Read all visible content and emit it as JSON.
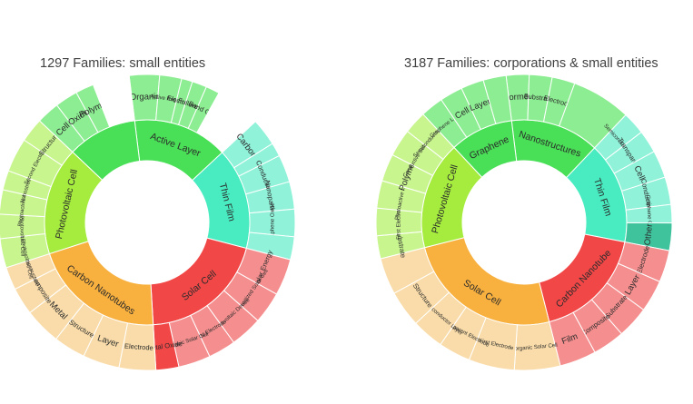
{
  "chart_data": [
    {
      "type": "sunburst",
      "title": "1297 Families: small entities",
      "segments": [
        {
          "name": "Active Layer",
          "value": 15,
          "color": "#49df56",
          "children": [
            {
              "name": "Organic",
              "value": 3.3,
              "color": "#8ded92"
            },
            {
              "name": "Active Region",
              "value": 2.4,
              "color": "#8ded92"
            },
            {
              "name": "Electrode",
              "value": 1.2,
              "color": "#8ded92"
            },
            {
              "name": "Fullerene",
              "value": 1.6,
              "color": "#8ded92"
            },
            {
              "name": "Band Gap",
              "value": 1.5,
              "color": "#8ded92"
            },
            {
              "name": "",
              "value": 5,
              "color": "#fff"
            }
          ]
        },
        {
          "name": "Thin Film",
          "value": 16,
          "color": "#48ecc0",
          "children": [
            {
              "name": "Carbon",
              "value": 3,
              "color": "#8ff2d9"
            },
            {
              "name": "",
              "value": 1.5,
              "color": "#8ff2d9"
            },
            {
              "name": "Conductive",
              "value": 3,
              "color": "#8ff2d9"
            },
            {
              "name": "Nanoparticle",
              "value": 3,
              "color": "#8ff2d9"
            },
            {
              "name": "Graphene Oxide",
              "value": 3,
              "color": "#8ff2d9"
            },
            {
              "name": "",
              "value": 2.5,
              "color": "#8ff2d9"
            }
          ]
        },
        {
          "name": "Solar Cell",
          "value": 20,
          "color": "#f24747",
          "children": [
            {
              "name": "Solar Energy",
              "value": 4,
              "color": "#f58f8f"
            },
            {
              "name": "Dye-sensitized Solar Cell",
              "value": 3.5,
              "color": "#f58f8f"
            },
            {
              "name": "Photovoltaic Device",
              "value": 3.5,
              "color": "#f58f8f"
            },
            {
              "name": "First Electrode",
              "value": 3,
              "color": "#f58f8f"
            },
            {
              "name": "Organic Solar Cell",
              "value": 3.5,
              "color": "#f58f8f"
            },
            {
              "name": "Metal Oxide",
              "value": 2.5,
              "color": "#f24747"
            }
          ]
        },
        {
          "name": "Carbon Nanotubes",
          "value": 21,
          "color": "#f8b03e",
          "children": [
            {
              "name": "Electrode",
              "value": 4,
              "color": "#f9dca9"
            },
            {
              "name": "Layer",
              "value": 4,
              "color": "#f9dca9"
            },
            {
              "name": "Structure",
              "value": 3.5,
              "color": "#f9dca9"
            },
            {
              "name": "Metal",
              "value": 4,
              "color": "#f9dca9"
            },
            {
              "name": "Composite",
              "value": 3,
              "color": "#f9dca9"
            },
            {
              "name": "Nanostructure",
              "value": 2.5,
              "color": "#f9dca9"
            }
          ]
        },
        {
          "name": "Photovoltaic Cell",
          "value": 17,
          "color": "#a5ec3e",
          "children": [
            {
              "name": "Organic Photovoltaic Cell",
              "value": 3,
              "color": "#c8f58e"
            },
            {
              "name": "Second Photovoltaic Cell",
              "value": 2.5,
              "color": "#c8f58e"
            },
            {
              "name": "Photoactive Layer",
              "value": 2.5,
              "color": "#c8f58e"
            },
            {
              "name": "Nanostructure",
              "value": 2,
              "color": "#c8f58e"
            },
            {
              "name": "Second Electrode",
              "value": 3.5,
              "color": "#c8f58e"
            },
            {
              "name": "Structure",
              "value": 2.5,
              "color": "#c8f58e"
            }
          ]
        },
        {
          "name": "",
          "value": 11,
          "color": "#49df56",
          "children": [
            {
              "name": "Cell",
              "value": 2.5,
              "color": "#8ded92"
            },
            {
              "name": "Oxide",
              "value": 2.5,
              "color": "#8ded92"
            },
            {
              "name": "Polymer",
              "value": 2,
              "color": "#8ded92"
            },
            {
              "name": "",
              "value": 4,
              "color": "#fff"
            }
          ]
        }
      ]
    },
    {
      "type": "sunburst",
      "title": "3187 Families: corporations & small entities",
      "segments": [
        {
          "name": "Nanostructures",
          "value": 14,
          "color": "#49df56",
          "children": [
            {
              "name": "Formed",
              "value": 2.5,
              "color": "#8ded92"
            },
            {
              "name": "Substrate",
              "value": 2.5,
              "color": "#8ded92"
            },
            {
              "name": "Electrode",
              "value": 2.5,
              "color": "#8ded92"
            },
            {
              "name": "",
              "value": 6.5,
              "color": "#8ded92"
            }
          ]
        },
        {
          "name": "Thin Film",
          "value": 16,
          "color": "#48ecc0",
          "children": [
            {
              "name": "Semiconductor",
              "value": 2.5,
              "color": "#8ff2d9"
            },
            {
              "name": "Transparent",
              "value": 2.5,
              "color": "#8ff2d9"
            },
            {
              "name": "Cell",
              "value": 3,
              "color": "#8ff2d9"
            },
            {
              "name": "Conductive",
              "value": 3,
              "color": "#8ff2d9"
            },
            {
              "name": "Graphene Oxide",
              "value": 2,
              "color": "#8ff2d9"
            },
            {
              "name": "Other",
              "value": 3,
              "color": "#3fc39c"
            }
          ]
        },
        {
          "name": "Carbon Nanotube",
          "value": 18,
          "color": "#f24747",
          "children": [
            {
              "name": "Electrode",
              "value": 3.5,
              "color": "#f58f8f"
            },
            {
              "name": "Layer",
              "value": 3.5,
              "color": "#f58f8f"
            },
            {
              "name": "Substrate",
              "value": 3.5,
              "color": "#f58f8f"
            },
            {
              "name": "Composite",
              "value": 3.5,
              "color": "#f58f8f"
            },
            {
              "name": "Film",
              "value": 4,
              "color": "#f58f8f"
            }
          ]
        },
        {
          "name": "Solar Cell",
          "value": 25,
          "color": "#f8b03e",
          "children": [
            {
              "name": "Organic Solar Cell",
              "value": 5,
              "color": "#f9dca9"
            },
            {
              "name": "First Electrode",
              "value": 5,
              "color": "#f9dca9"
            },
            {
              "name": "Transparent Electrode",
              "value": 3.5,
              "color": "#f9dca9"
            },
            {
              "name": "Semiconductor Layer",
              "value": 3.5,
              "color": "#f9dca9"
            },
            {
              "name": "Structure",
              "value": 4,
              "color": "#f9dca9"
            },
            {
              "name": "",
              "value": 4,
              "color": "#f9dca9"
            }
          ]
        },
        {
          "name": "Photovoltaic Cell",
          "value": 17,
          "color": "#a5ec3e",
          "children": [
            {
              "name": "Substrate",
              "value": 2.5,
              "color": "#c8f58e"
            },
            {
              "name": "First Electrode",
              "value": 3,
              "color": "#c8f58e"
            },
            {
              "name": "Photoactive Layer",
              "value": 3,
              "color": "#c8f58e"
            },
            {
              "name": "Polymer",
              "value": 3,
              "color": "#c8f58e"
            },
            {
              "name": "Conductive Substrate",
              "value": 3,
              "color": "#c8f58e"
            },
            {
              "name": "Semiconductor Layer",
              "value": 2.5,
              "color": "#c8f58e"
            }
          ]
        },
        {
          "name": "Graphene",
          "value": 10,
          "color": "#49df56",
          "children": [
            {
              "name": "Graphene Layer",
              "value": 2.5,
              "color": "#8ded92"
            },
            {
              "name": "Cell",
              "value": 2.5,
              "color": "#8ded92"
            },
            {
              "name": "Layer",
              "value": 2.5,
              "color": "#8ded92"
            },
            {
              "name": "",
              "value": 2.5,
              "color": "#8ded92"
            }
          ]
        }
      ]
    }
  ]
}
